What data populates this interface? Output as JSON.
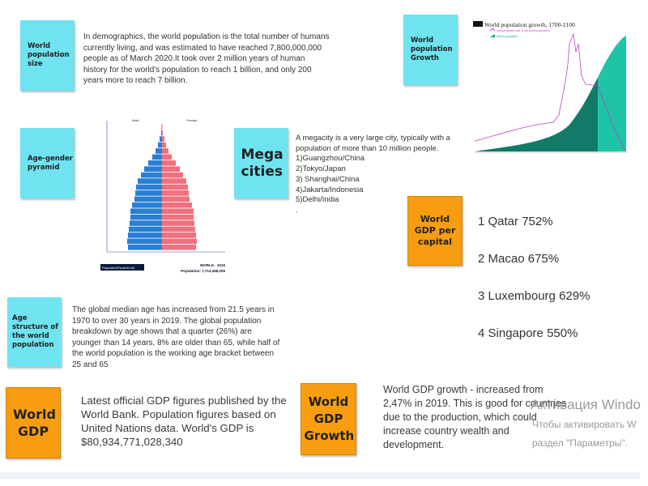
{
  "sections": {
    "population_size": {
      "label": "World population size",
      "text": "In demographics, the world population is the total number of humans\ncurrently living, and was estimated to have reached 7,800,000,000\npeople as of March 2020.It took over 2 million years of human\nhistory for the world's population to reach 1 billion, and only 200\nyears more to reach 7 billion."
    },
    "population_growth": {
      "label": "World population Growth",
      "chart_title": "World population growth, 1700-2100",
      "legend_rate": "Annual growth rate of the world population",
      "legend_pop": "World population"
    },
    "age_gender": {
      "label": "Age-gender pyramid",
      "male": "Male",
      "female": "Female",
      "source": "PopulationPyramid.net",
      "world": "WORLD - 2019",
      "population": "Population: 7,713,468,205"
    },
    "mega_cities": {
      "label": "Mega cities",
      "text": "A megacity is a very large city, typically with a\npopulation of more than 10 million people.\n1)Guangzhou/China\n2)Tokyo/Japan\n3) Shanghai/China\n4)Jakarta/Indonesia\n5)Delhi/India\n."
    },
    "gdp_per_capita": {
      "label": "World GDP per capital",
      "items": [
        "1 Qatar 752%",
        "2 Macao 675%",
        "3 Luxembourg 629%",
        "4 Singapore 550%"
      ]
    },
    "age_structure": {
      "label": "Age structure of the world population",
      "text": "The global median age has increased from 21.5 years in\n1970 to over 30 years in 2019. The global population\nbreakdown by age shows that a quarter (26%) are\nyounger than 14 years, 8% are older than 65, while half of\nthe world population is the working age bracket between\n25 and 65"
    },
    "world_gdp": {
      "label": "World GDP",
      "text": "Latest official GDP figures published by the\nWorld Bank. Population figures based on\nUnited Nations data. World's GDP is\n$80,934,771,028,340"
    },
    "gdp_growth": {
      "label": "World GDP Growth",
      "text": "World GDP growth - increased from\n2,47% in 2019. This is good for countries\ndue to the production, which could\nincrease country wealth and\ndevelopment."
    }
  },
  "watermark": {
    "line1": "Активация Windo",
    "line2": "Чтобы активировать W",
    "line3": "раздел \"Параметры\"."
  },
  "colors": {
    "cyan": "#6fe3f0",
    "orange": "#f79d0f",
    "male": "#2a7fd4",
    "female": "#f0707e",
    "teal": "#1aa88a"
  },
  "pyramid_pct": [
    4.2,
    4.3,
    4.2,
    4.1,
    4.0,
    3.9,
    3.9,
    3.7,
    3.4,
    3.3,
    3.2,
    3.0,
    2.6,
    2.2,
    1.7,
    1.2,
    0.8,
    0.5,
    0.3,
    0.1,
    0.05
  ]
}
